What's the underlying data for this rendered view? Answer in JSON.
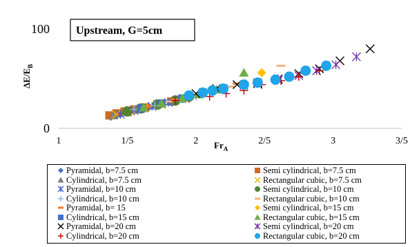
{
  "chart_data": {
    "type": "scatter",
    "title": "Upstream, G=5cm",
    "xlabel": "Fr",
    "xlabel_sub": "A",
    "ylabel": "ΔE/E",
    "ylabel_sub": "B",
    "xlim": [
      1,
      3.5
    ],
    "ylim": [
      0,
      100
    ],
    "xticks": [
      1,
      1.5,
      2,
      2.5,
      3,
      3.5
    ],
    "xtick_labels": [
      "1",
      "1/5",
      "2",
      "2/5",
      "3",
      "3/5"
    ],
    "yticks": [
      0,
      100
    ],
    "ytick_labels": [
      "0",
      "100"
    ],
    "grid": false,
    "legend_position": "bottom",
    "series": [
      {
        "name": "Pyramidal, b=7.5 cm",
        "marker": "diamond",
        "color": "#4472c4",
        "x": [
          1.38,
          1.45,
          1.55,
          1.65
        ],
        "y": [
          12,
          15,
          18,
          21
        ]
      },
      {
        "name": "Semi cylindrical, b=7.5 cm",
        "marker": "square",
        "color": "#d2691e",
        "x": [
          1.37,
          1.42,
          1.48,
          1.55,
          1.63,
          1.72,
          1.82
        ],
        "y": [
          13,
          15,
          17,
          19,
          21,
          24,
          27
        ]
      },
      {
        "name": "Cylindrical, b=7.5 cm",
        "marker": "triangle",
        "color": "#808080",
        "x": [
          1.4,
          1.5,
          1.6,
          1.7,
          1.82
        ],
        "y": [
          13,
          16,
          20,
          23,
          27
        ]
      },
      {
        "name": "Rectangular cubic, b=7.5 cm",
        "marker": "x",
        "color": "#e6b800",
        "x": [
          1.42,
          1.52,
          1.62,
          1.75
        ],
        "y": [
          14,
          17,
          20,
          24
        ]
      },
      {
        "name": "Pyramidal, b=10 cm",
        "marker": "star",
        "color": "#3a5fcd",
        "x": [
          1.45,
          1.55,
          1.68,
          1.8
        ],
        "y": [
          14,
          18,
          22,
          26
        ]
      },
      {
        "name": "Semi cylindrical, b=10 cm",
        "marker": "circle",
        "color": "#548235",
        "x": [
          1.5,
          1.6,
          1.72,
          1.85,
          1.95
        ],
        "y": [
          17,
          20,
          24,
          28,
          32
        ]
      },
      {
        "name": "Cylindrical, b=10 cm",
        "marker": "plus",
        "color": "#8db4e2",
        "x": [
          1.55,
          1.7,
          1.85,
          2.0
        ],
        "y": [
          19,
          23,
          28,
          32
        ]
      },
      {
        "name": "Rectangular cubic, b=10 cm",
        "marker": "dash",
        "color": "#f4b183",
        "x": [
          1.6,
          1.8,
          2.0,
          2.25,
          2.62
        ],
        "y": [
          20,
          27,
          33,
          42,
          63
        ]
      },
      {
        "name": "Pyramidal, b= 15",
        "marker": "dash",
        "color": "#ed7d31",
        "x": [
          1.65,
          1.85,
          2.05,
          2.3
        ],
        "y": [
          22,
          29,
          35,
          45
        ]
      },
      {
        "name": "Semi cylindrical, b=15 cm",
        "marker": "diamond",
        "color": "#ffc000",
        "x": [
          2.48
        ],
        "y": [
          56
        ]
      },
      {
        "name": "Cylindrical, b=15 cm",
        "marker": "square",
        "color": "#4472c4",
        "x": [
          1.6,
          1.75,
          1.9,
          2.05
        ],
        "y": [
          20,
          25,
          30,
          36
        ]
      },
      {
        "name": "Rectangular cubic, b=15 cm",
        "marker": "triangle",
        "color": "#70ad47",
        "x": [
          1.62,
          1.75,
          1.9,
          2.02,
          2.15,
          2.35
        ],
        "y": [
          21,
          25,
          30,
          34,
          39,
          56
        ]
      },
      {
        "name": "Pyramidal, b=20 cm",
        "marker": "x",
        "color": "#000000",
        "x": [
          2.0,
          2.15,
          2.3,
          2.45,
          2.6,
          2.75,
          2.9,
          3.05,
          3.27
        ],
        "y": [
          35,
          40,
          44,
          45,
          49,
          55,
          60,
          68,
          80
        ]
      },
      {
        "name": "Semi cylindrical, b=20 cm",
        "marker": "star",
        "color": "#7030a0",
        "x": [
          2.2,
          2.35,
          2.45,
          2.6,
          2.75,
          2.88,
          3.02,
          3.17
        ],
        "y": [
          40,
          43,
          46,
          50,
          53,
          58,
          64,
          72
        ]
      },
      {
        "name": "Cylindrical, b=20 cm",
        "marker": "plus",
        "color": "#c00000",
        "x": [
          1.85,
          1.95,
          2.1,
          2.22,
          2.35,
          2.48,
          2.62,
          2.75,
          2.9
        ],
        "y": [
          28,
          30,
          32,
          35,
          38,
          44,
          48,
          52,
          58
        ]
      },
      {
        "name": "Rectangular cubic, b=20 cm",
        "marker": "circle",
        "color": "#1fa5e8",
        "x": [
          1.95,
          2.05,
          2.12,
          2.2,
          2.35,
          2.45,
          2.58,
          2.68,
          2.8,
          2.95
        ],
        "y": [
          33,
          36,
          38,
          40,
          44,
          46,
          49,
          52,
          58,
          63
        ]
      }
    ]
  }
}
